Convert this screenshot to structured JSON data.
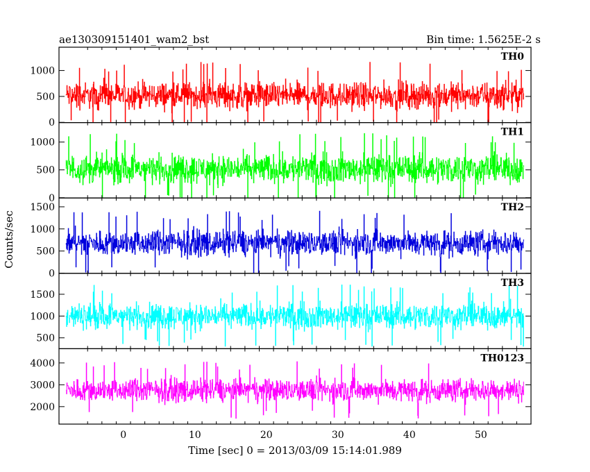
{
  "chart_data": {
    "type": "line",
    "title_left": "ae130309151401_wam2_bst",
    "title_right": "Bin time: 1.5625E-2 s",
    "xlabel": "Time [sec] 0 = 2013/03/09 15:14:01.989",
    "ylabel": "Counts/sec",
    "xlim": [
      -9,
      57
    ],
    "x_ticks": [
      0,
      10,
      20,
      30,
      40,
      50
    ],
    "x_range_data": [
      -8,
      56
    ],
    "grid": false,
    "panels": [
      {
        "name": "TH0",
        "color": "#ff0000",
        "ylim": [
          -5,
          1450
        ],
        "y_ticks": [
          0,
          500,
          1000
        ],
        "baseline": 520,
        "amplitude": 380,
        "min_clip": 0
      },
      {
        "name": "TH1",
        "color": "#00ff00",
        "ylim": [
          -5,
          1350
        ],
        "y_ticks": [
          0,
          500,
          1000
        ],
        "baseline": 520,
        "amplitude": 380,
        "min_clip": 0
      },
      {
        "name": "TH2",
        "color": "#0000dd",
        "ylim": [
          -5,
          1700
        ],
        "y_ticks": [
          0,
          500,
          1000,
          1500
        ],
        "baseline": 680,
        "amplitude": 430,
        "min_clip": 0
      },
      {
        "name": "TH3",
        "color": "#00ffff",
        "ylim": [
          250,
          1980
        ],
        "y_ticks": [
          500,
          1000,
          1500
        ],
        "baseline": 1000,
        "amplitude": 430,
        "min_clip": 300
      },
      {
        "name": "TH0123",
        "color": "#ff00ff",
        "ylim": [
          1200,
          4650
        ],
        "y_ticks": [
          2000,
          3000,
          4000
        ],
        "baseline": 2750,
        "amplitude": 780,
        "min_clip": 1200
      }
    ]
  }
}
